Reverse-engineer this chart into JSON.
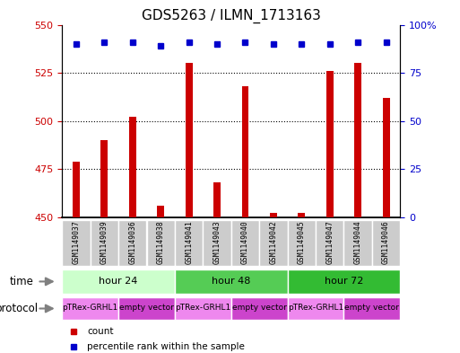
{
  "title": "GDS5263 / ILMN_1713163",
  "samples": [
    "GSM1149037",
    "GSM1149039",
    "GSM1149036",
    "GSM1149038",
    "GSM1149041",
    "GSM1149043",
    "GSM1149040",
    "GSM1149042",
    "GSM1149045",
    "GSM1149047",
    "GSM1149044",
    "GSM1149046"
  ],
  "counts": [
    479,
    490,
    502,
    456,
    530,
    468,
    518,
    452,
    452,
    526,
    530,
    512
  ],
  "percentile_ranks": [
    90,
    91,
    91,
    89,
    91,
    90,
    91,
    90,
    90,
    90,
    91,
    91
  ],
  "ylim_left": [
    450,
    550
  ],
  "ylim_right": [
    0,
    100
  ],
  "yticks_left": [
    450,
    475,
    500,
    525,
    550
  ],
  "yticks_right": [
    0,
    25,
    50,
    75,
    100
  ],
  "bar_color": "#cc0000",
  "dot_color": "#0000cc",
  "time_groups": [
    {
      "label": "hour 24",
      "start": 0,
      "end": 4,
      "color": "#ccffcc"
    },
    {
      "label": "hour 48",
      "start": 4,
      "end": 8,
      "color": "#55cc55"
    },
    {
      "label": "hour 72",
      "start": 8,
      "end": 12,
      "color": "#33bb33"
    }
  ],
  "protocol_groups": [
    {
      "label": "pTRex-GRHL1",
      "start": 0,
      "end": 2,
      "color": "#ee88ee"
    },
    {
      "label": "empty vector",
      "start": 2,
      "end": 4,
      "color": "#cc44cc"
    },
    {
      "label": "pTRex-GRHL1",
      "start": 4,
      "end": 6,
      "color": "#ee88ee"
    },
    {
      "label": "empty vector",
      "start": 6,
      "end": 8,
      "color": "#cc44cc"
    },
    {
      "label": "pTRex-GRHL1",
      "start": 8,
      "end": 10,
      "color": "#ee88ee"
    },
    {
      "label": "empty vector",
      "start": 10,
      "end": 12,
      "color": "#cc44cc"
    }
  ],
  "background_color": "#ffffff",
  "sample_box_color": "#cccccc",
  "sample_box_edge": "#ffffff"
}
